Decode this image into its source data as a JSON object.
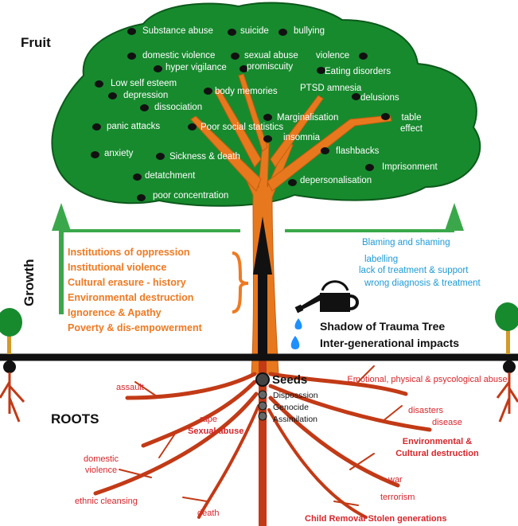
{
  "headings": {
    "fruit": "Fruit",
    "growth": "Growth",
    "roots": "ROOTS",
    "seeds": "Seeds",
    "shadow_title": "Shadow of Trauma Tree",
    "shadow_subtitle": "Inter-generational impacts"
  },
  "fruit": [
    "Substance abuse",
    "suicide",
    "bullying",
    "domestic violence",
    "sexual abuse",
    "violence",
    "hyper vigilance",
    "promiscuity",
    "Eating disorders",
    "Low self esteem",
    "depression",
    "body memories",
    "PTSD amnesia",
    "delusions",
    "dissociation",
    "Marginalisation",
    "table effect",
    "panic attacks",
    "Poor social statistics",
    "insomnia",
    "anxiety",
    "Sickness & death",
    "flashbacks",
    "Imprisonment",
    "detatchment",
    "depersonalisation",
    "poor concentration"
  ],
  "growth": [
    "Institutions of oppression",
    "Institutional violence",
    "Cultural erasure - history",
    "Environmental destruction",
    "Ignorence & Apathy",
    "Poverty & dis-empowerment"
  ],
  "shadow_items": [
    "Blaming and shaming",
    "labelling",
    "lack of treatment & support",
    "wrong diagnosis & treatment"
  ],
  "seeds": [
    "Disposssion",
    "Genocide",
    "Assimilation"
  ],
  "roots": [
    "assault",
    "Emotional, physical & psycological abuse",
    "rape",
    "Sexual abuse",
    "disasters",
    "disease",
    "domestic violence",
    "Environmental & Cultural destruction",
    "war",
    "terrorism",
    "ethnic cleansing",
    "death",
    "Child Removal Stolen generations"
  ],
  "colors": {
    "foliage": "#178a2e",
    "foliage_edge": "#0c5a1b",
    "trunk": "#e8781e",
    "roots": "#c23a16",
    "growth_text": "#ee7a22",
    "shadow_text": "#1f9ad6",
    "root_text": "#d6262a",
    "arrow_green": "#3aa84a",
    "water": "#1e90ff"
  },
  "icons": [
    "watering-can-icon",
    "water-drop-icon",
    "seed-icon",
    "fruit-dot-icon",
    "small-tree-icon"
  ]
}
